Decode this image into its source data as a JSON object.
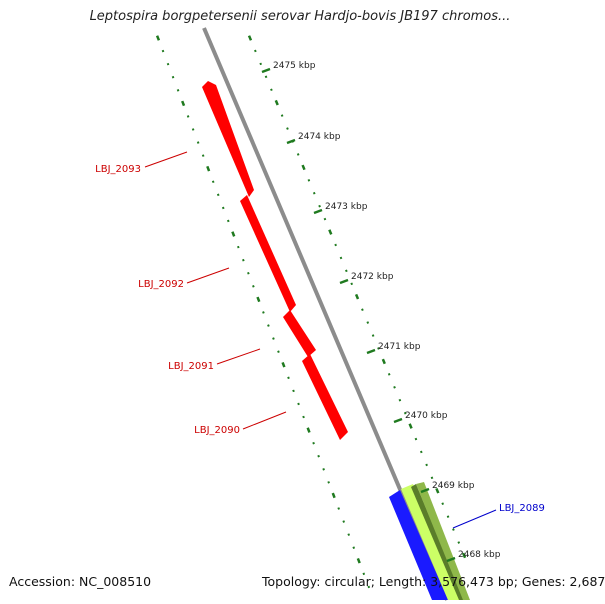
{
  "title": "Leptospira borgpetersenii serovar Hardjo-bovis JB197 chromos...",
  "accession": "Accession: NC_008510",
  "stats": "Topology: circular; Length: 3,576,473 bp; Genes: 2,687",
  "colors": {
    "background": "#ffffff",
    "backbone": "#8c8c8c",
    "tick_track": "#1f7a1f",
    "forward_genes": "#ff0000",
    "forward_labels": "#cc0000",
    "reverse_labels": "#0000cc",
    "highlight_blue": "#1a1aff",
    "highlight_green": "#ccff66",
    "highlight_olive": "#5a7d2a"
  },
  "ticks": [
    {
      "label": "2475 kbp"
    },
    {
      "label": "2474 kbp"
    },
    {
      "label": "2473 kbp"
    },
    {
      "label": "2472 kbp"
    },
    {
      "label": "2471 kbp"
    },
    {
      "label": "2470 kbp"
    },
    {
      "label": "2469 kbp"
    },
    {
      "label": "2468 kbp"
    }
  ],
  "genes": [
    {
      "name": "LBJ_2093",
      "strand": "+",
      "track": "outer"
    },
    {
      "name": "LBJ_2092",
      "strand": "+",
      "track": "outer"
    },
    {
      "name": "LBJ_2091",
      "strand": "+",
      "track": "outer"
    },
    {
      "name": "LBJ_2090",
      "strand": "+",
      "track": "outer"
    },
    {
      "name": "LBJ_2089",
      "strand": "-",
      "track": "inner"
    }
  ]
}
